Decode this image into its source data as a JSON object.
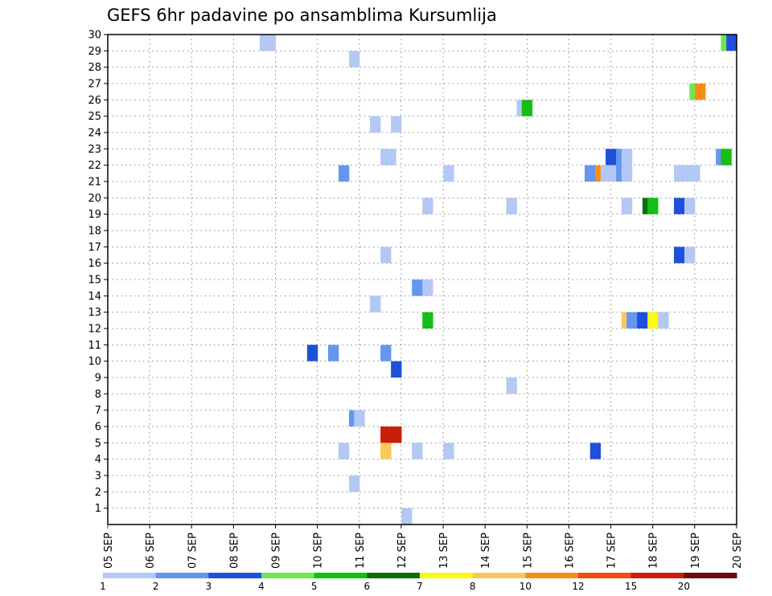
{
  "chart_data": {
    "type": "heatmap",
    "title": "GEFS 6hr padavine po ansamblima Kursumlija",
    "x_tick_labels": [
      "05 SEP",
      "06 SEP",
      "07 SEP",
      "08 SEP",
      "09 SEP",
      "10 SEP",
      "11 SEP",
      "12 SEP",
      "13 SEP",
      "14 SEP",
      "15 SEP",
      "16 SEP",
      "17 SEP",
      "18 SEP",
      "19 SEP",
      "20 SEP"
    ],
    "y_tick_labels": [
      "1",
      "2",
      "3",
      "4",
      "5",
      "6",
      "7",
      "8",
      "9",
      "10",
      "11",
      "12",
      "13",
      "14",
      "15",
      "16",
      "17",
      "18",
      "19",
      "20",
      "21",
      "22",
      "23",
      "24",
      "25",
      "26",
      "27",
      "28",
      "29",
      "30"
    ],
    "x_range_days": [
      5,
      20
    ],
    "y_range": [
      0,
      30
    ],
    "grid": true,
    "colorbar": {
      "labels": [
        "1",
        "2",
        "3",
        "4",
        "5",
        "6",
        "7",
        "8",
        "10",
        "12",
        "15",
        "20"
      ],
      "colors": [
        "#b4c8f5",
        "#6496f0",
        "#1e50dc",
        "#6ee650",
        "#14be14",
        "#0a6e0a",
        "#fafa14",
        "#fac85a",
        "#fa8c14",
        "#f04b14",
        "#c81e0a",
        "#6e0a0a"
      ]
    },
    "cells": [
      {
        "day": 8.75,
        "member": 30,
        "value": 1
      },
      {
        "day": 8.88,
        "member": 30,
        "value": 1
      },
      {
        "day": 19.75,
        "member": 30,
        "value": 4
      },
      {
        "day": 19.88,
        "member": 30,
        "value": 3
      },
      {
        "day": 10.88,
        "member": 29,
        "value": 1
      },
      {
        "day": 19.0,
        "member": 27,
        "value": 4
      },
      {
        "day": 19.13,
        "member": 27,
        "value": 10
      },
      {
        "day": 14.88,
        "member": 26,
        "value": 1
      },
      {
        "day": 15.0,
        "member": 26,
        "value": 5
      },
      {
        "day": 11.38,
        "member": 25,
        "value": 1
      },
      {
        "day": 11.88,
        "member": 25,
        "value": 1
      },
      {
        "day": 11.63,
        "member": 23,
        "value": 1
      },
      {
        "day": 11.75,
        "member": 23,
        "value": 1
      },
      {
        "day": 17.0,
        "member": 23,
        "value": 3
      },
      {
        "day": 17.25,
        "member": 23,
        "value": 2
      },
      {
        "day": 17.38,
        "member": 23,
        "value": 1
      },
      {
        "day": 19.63,
        "member": 23,
        "value": 2
      },
      {
        "day": 19.75,
        "member": 23,
        "value": 5
      },
      {
        "day": 10.63,
        "member": 22,
        "value": 2
      },
      {
        "day": 13.13,
        "member": 22,
        "value": 1
      },
      {
        "day": 16.5,
        "member": 22,
        "value": 2
      },
      {
        "day": 16.75,
        "member": 22,
        "value": 10
      },
      {
        "day": 16.88,
        "member": 22,
        "value": 1
      },
      {
        "day": 17.0,
        "member": 22,
        "value": 1
      },
      {
        "day": 17.25,
        "member": 22,
        "value": 2
      },
      {
        "day": 17.38,
        "member": 22,
        "value": 1
      },
      {
        "day": 18.63,
        "member": 22,
        "value": 1
      },
      {
        "day": 18.75,
        "member": 22,
        "value": 1
      },
      {
        "day": 18.88,
        "member": 22,
        "value": 1
      },
      {
        "day": 19.0,
        "member": 22,
        "value": 1
      },
      {
        "day": 12.63,
        "member": 20,
        "value": 1
      },
      {
        "day": 14.63,
        "member": 20,
        "value": 1
      },
      {
        "day": 17.38,
        "member": 20,
        "value": 1
      },
      {
        "day": 17.88,
        "member": 20,
        "value": 6
      },
      {
        "day": 18.0,
        "member": 20,
        "value": 5
      },
      {
        "day": 18.63,
        "member": 20,
        "value": 3
      },
      {
        "day": 18.88,
        "member": 20,
        "value": 1
      },
      {
        "day": 11.63,
        "member": 17,
        "value": 1
      },
      {
        "day": 18.63,
        "member": 17,
        "value": 3
      },
      {
        "day": 18.88,
        "member": 17,
        "value": 1
      },
      {
        "day": 12.38,
        "member": 15,
        "value": 2
      },
      {
        "day": 12.63,
        "member": 15,
        "value": 1
      },
      {
        "day": 11.38,
        "member": 14,
        "value": 1
      },
      {
        "day": 12.63,
        "member": 13,
        "value": 5
      },
      {
        "day": 17.38,
        "member": 13,
        "value": 8
      },
      {
        "day": 17.5,
        "member": 13,
        "value": 2
      },
      {
        "day": 17.75,
        "member": 13,
        "value": 3
      },
      {
        "day": 18.0,
        "member": 13,
        "value": 7
      },
      {
        "day": 18.25,
        "member": 13,
        "value": 1
      },
      {
        "day": 9.88,
        "member": 11,
        "value": 3
      },
      {
        "day": 10.38,
        "member": 11,
        "value": 2
      },
      {
        "day": 11.63,
        "member": 11,
        "value": 2
      },
      {
        "day": 11.88,
        "member": 10,
        "value": 3
      },
      {
        "day": 14.63,
        "member": 9,
        "value": 1
      },
      {
        "day": 10.88,
        "member": 7,
        "value": 2
      },
      {
        "day": 11.0,
        "member": 7,
        "value": 1
      },
      {
        "day": 11.63,
        "member": 6,
        "value": 15
      },
      {
        "day": 11.75,
        "member": 6,
        "value": 15
      },
      {
        "day": 11.88,
        "member": 6,
        "value": 15
      },
      {
        "day": 10.63,
        "member": 5,
        "value": 1
      },
      {
        "day": 11.63,
        "member": 5,
        "value": 8
      },
      {
        "day": 12.38,
        "member": 5,
        "value": 1
      },
      {
        "day": 13.13,
        "member": 5,
        "value": 1
      },
      {
        "day": 16.63,
        "member": 5,
        "value": 3
      },
      {
        "day": 10.88,
        "member": 3,
        "value": 1
      },
      {
        "day": 12.13,
        "member": 1,
        "value": 1
      }
    ]
  }
}
